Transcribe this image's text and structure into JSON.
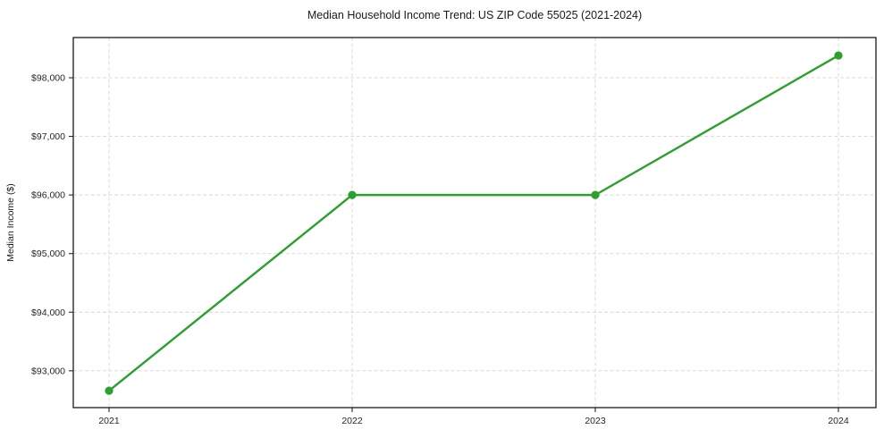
{
  "chart_data": {
    "type": "line",
    "title": "Median Household Income Trend: US ZIP Code 55025 (2021-2024)",
    "xlabel": "",
    "ylabel": "Median Income ($)",
    "categories": [
      "2021",
      "2022",
      "2023",
      "2024"
    ],
    "values": [
      92660,
      96000,
      96000,
      98380
    ],
    "y_ticks": [
      93000,
      94000,
      95000,
      96000,
      97000,
      98000
    ],
    "y_tick_labels": [
      "$93,000",
      "$94,000",
      "$95,000",
      "$96,000",
      "$97,000",
      "$98,000"
    ],
    "ylim": [
      92372,
      98686
    ],
    "grid": true,
    "legend_position": "none",
    "line_color": "#2ca02c",
    "marker": "circle",
    "grid_color": "#d6d6d6",
    "text_color": "#1a1a1a",
    "background_color": "#ffffff"
  }
}
